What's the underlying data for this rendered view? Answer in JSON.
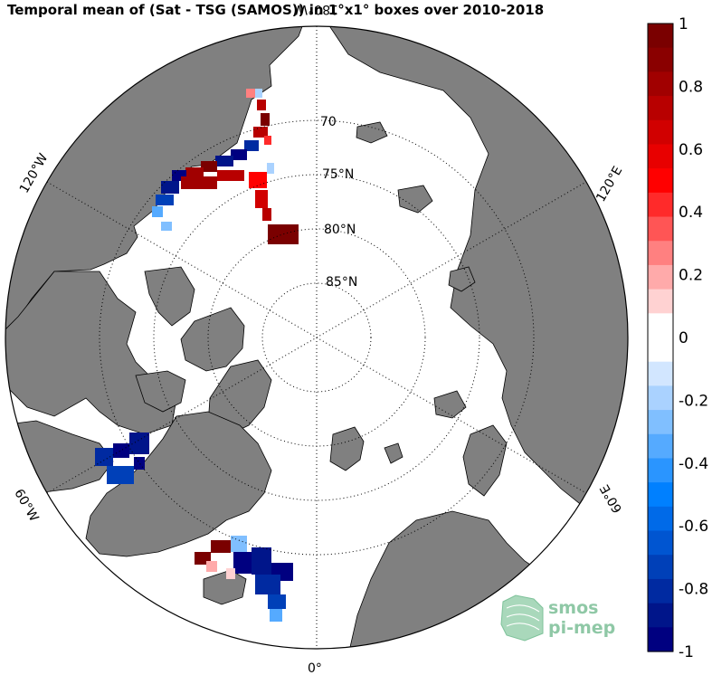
{
  "title": "Temporal mean of (Sat - TSG (SAMOS)) in 1°x1° boxes over 2010-2018",
  "map": {
    "projection": "north-polar-stereographic",
    "land_color": "#808080",
    "ocean_color": "#ffffff",
    "latitude_circles": [
      70,
      75,
      80,
      85
    ],
    "latitude_labels": [
      "70",
      "75°N",
      "80°N",
      "85°N"
    ],
    "longitude_labels": [
      "180°W",
      "120°E",
      "60°E",
      "0°",
      "60°W",
      "120°W"
    ]
  },
  "colorbar": {
    "min": -1,
    "max": 1,
    "tick_labels": [
      "1",
      "0.8",
      "0.6",
      "0.4",
      "0.2",
      "0",
      "-0.2",
      "-0.4",
      "-0.6",
      "-0.8",
      "-1"
    ],
    "colors": [
      "#7a0000",
      "#8a0000",
      "#a10000",
      "#b80000",
      "#d10000",
      "#e80000",
      "#ff0000",
      "#ff2a2a",
      "#ff5555",
      "#ff8080",
      "#ffaaaa",
      "#ffd2d2",
      "#ffffff",
      "#ffffff",
      "#d2e6ff",
      "#aad2ff",
      "#80bfff",
      "#55aaff",
      "#2a95ff",
      "#0080ff",
      "#006ae8",
      "#0055d1",
      "#0040b8",
      "#002aa1",
      "#00158a",
      "#000080"
    ]
  },
  "logo": {
    "line1": "smos",
    "line2": "pi-mep"
  }
}
